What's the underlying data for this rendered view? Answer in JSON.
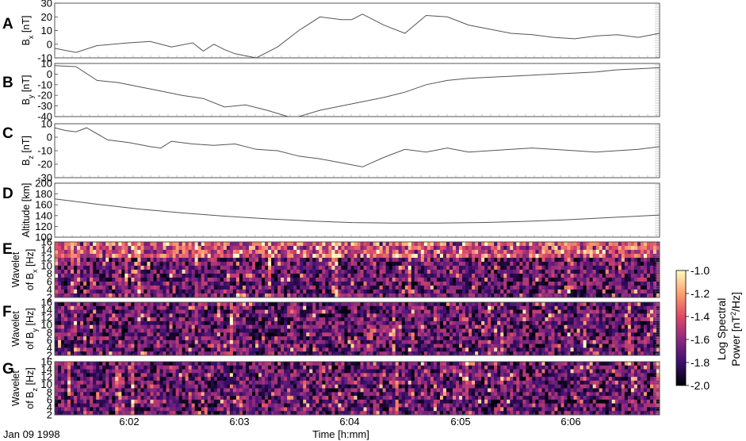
{
  "figure": {
    "date_label": "Jan 09 1998",
    "xlabel": "Time [h:mm]",
    "x_ticks": [
      "6:02",
      "6:03",
      "6:04",
      "6:05",
      "6:06"
    ],
    "colorbar": {
      "label_line1": "Log Spectral",
      "label_line2_prefix": "Power [nT",
      "label_line2_sup": "2",
      "label_line2_suffix": "/Hz]",
      "ticks": [
        "-1.0",
        "-1.2",
        "-1.4",
        "-1.6",
        "-1.8",
        "-2.0"
      ],
      "range": [
        -2.0,
        -1.0
      ],
      "colormap": [
        "#000004",
        "#3b0f70",
        "#8c2981",
        "#de4968",
        "#fe9f6d",
        "#fcfdbf"
      ]
    }
  },
  "chart_data": [
    {
      "type": "line",
      "panel": "A",
      "ylabel_main": "B",
      "ylabel_sub": "x",
      "ylabel_unit": " [nT]",
      "yticks": [
        "30",
        "20",
        "10",
        "0",
        "-10"
      ],
      "ylim": [
        -10,
        30
      ],
      "xlim": [
        6.01,
        6.58
      ],
      "series": [
        {
          "x": [
            6.01,
            6.03,
            6.05,
            6.08,
            6.1,
            6.12,
            6.14,
            6.15,
            6.16,
            6.17,
            6.18,
            6.2,
            6.22,
            6.24,
            6.26,
            6.28,
            6.29,
            6.3,
            6.32,
            6.34,
            6.36,
            6.38,
            6.4,
            6.42,
            6.44,
            6.46,
            6.48,
            6.5,
            6.52,
            6.54,
            6.56,
            6.58
          ],
          "y": [
            -3,
            -6,
            -1,
            1,
            2,
            -2,
            1,
            -5,
            0,
            -4,
            -7,
            -10,
            -2,
            10,
            20,
            18,
            18,
            22,
            14,
            8,
            21,
            20,
            14,
            11,
            8,
            7,
            5,
            4,
            6,
            7,
            5,
            8
          ]
        }
      ]
    },
    {
      "type": "line",
      "panel": "B",
      "ylabel_main": "B",
      "ylabel_sub": "y",
      "ylabel_unit": " [nT]",
      "yticks": [
        "10",
        "0",
        "-10",
        "-20",
        "-30",
        "-40"
      ],
      "ylim": [
        -40,
        10
      ],
      "xlim": [
        6.01,
        6.58
      ],
      "series": [
        {
          "x": [
            6.01,
            6.03,
            6.05,
            6.07,
            6.09,
            6.11,
            6.13,
            6.15,
            6.17,
            6.19,
            6.21,
            6.23,
            6.24,
            6.26,
            6.28,
            6.3,
            6.32,
            6.34,
            6.36,
            6.38,
            6.4,
            6.42,
            6.44,
            6.46,
            6.48,
            6.5,
            6.52,
            6.54,
            6.56,
            6.58
          ],
          "y": [
            8,
            7,
            -6,
            -8,
            -12,
            -16,
            -20,
            -23,
            -31,
            -29,
            -34,
            -40,
            -40,
            -34,
            -30,
            -26,
            -22,
            -17,
            -10,
            -6,
            -4,
            -3,
            -2,
            -1,
            0,
            1,
            2,
            4,
            5,
            6
          ]
        }
      ]
    },
    {
      "type": "line",
      "panel": "C",
      "ylabel_main": "B",
      "ylabel_sub": "z",
      "ylabel_unit": " [nT]",
      "yticks": [
        "10",
        "0",
        "-10",
        "-20",
        "-30"
      ],
      "ylim": [
        -30,
        10
      ],
      "xlim": [
        6.01,
        6.58
      ],
      "series": [
        {
          "x": [
            6.01,
            6.02,
            6.03,
            6.04,
            6.06,
            6.08,
            6.1,
            6.11,
            6.12,
            6.14,
            6.16,
            6.18,
            6.2,
            6.22,
            6.24,
            6.26,
            6.28,
            6.3,
            6.32,
            6.34,
            6.36,
            6.38,
            6.4,
            6.42,
            6.44,
            6.46,
            6.48,
            6.5,
            6.52,
            6.54,
            6.56,
            6.58
          ],
          "y": [
            7,
            5,
            4,
            7,
            -2,
            -4,
            -7,
            -8,
            -3,
            -5,
            -6,
            -5,
            -9,
            -10,
            -14,
            -16,
            -19,
            -22,
            -15,
            -9,
            -11,
            -8,
            -11,
            -10,
            -9,
            -8,
            -9,
            -10,
            -11,
            -10,
            -9,
            -7
          ]
        }
      ]
    },
    {
      "type": "line",
      "panel": "D",
      "ylabel_main": "Altitude [km]",
      "yticks": [
        "200",
        "180",
        "160",
        "140",
        "120",
        "100"
      ],
      "ylim": [
        100,
        200
      ],
      "xlim": [
        6.01,
        6.58
      ],
      "series": [
        {
          "x": [
            6.01,
            6.05,
            6.09,
            6.13,
            6.17,
            6.21,
            6.25,
            6.29,
            6.33,
            6.37,
            6.41,
            6.45,
            6.49,
            6.53,
            6.58
          ],
          "y": [
            171,
            161,
            152,
            145,
            139,
            134,
            130,
            127,
            126,
            126,
            127,
            129,
            132,
            136,
            141
          ]
        }
      ]
    },
    {
      "type": "heatmap",
      "panel": "E",
      "ylabel_line1": "Wavelet",
      "ylabel_line2_prefix": "of B",
      "ylabel_sub": "x",
      "ylabel_unit": " [Hz]",
      "yticks": [
        "16",
        "14",
        "12",
        "10",
        "8",
        "6",
        "4",
        "2"
      ],
      "ylim": [
        2,
        16
      ],
      "zlim": [
        -2.0,
        -1.0
      ]
    },
    {
      "type": "heatmap",
      "panel": "F",
      "ylabel_line1": "Wavelet",
      "ylabel_line2_prefix": "of B",
      "ylabel_sub": "y",
      "ylabel_unit": " [Hz]",
      "yticks": [
        "16",
        "14",
        "12",
        "10",
        "8",
        "6",
        "4",
        "2"
      ],
      "ylim": [
        2,
        16
      ],
      "zlim": [
        -2.0,
        -1.0
      ]
    },
    {
      "type": "heatmap",
      "panel": "G",
      "ylabel_line1": "Wavelet",
      "ylabel_line2_prefix": "of B",
      "ylabel_sub": "z",
      "ylabel_unit": " [Hz]",
      "yticks": [
        "16",
        "14",
        "12",
        "10",
        "8",
        "6",
        "4",
        "2"
      ],
      "ylim": [
        2,
        16
      ],
      "zlim": [
        -2.0,
        -1.0
      ]
    }
  ]
}
